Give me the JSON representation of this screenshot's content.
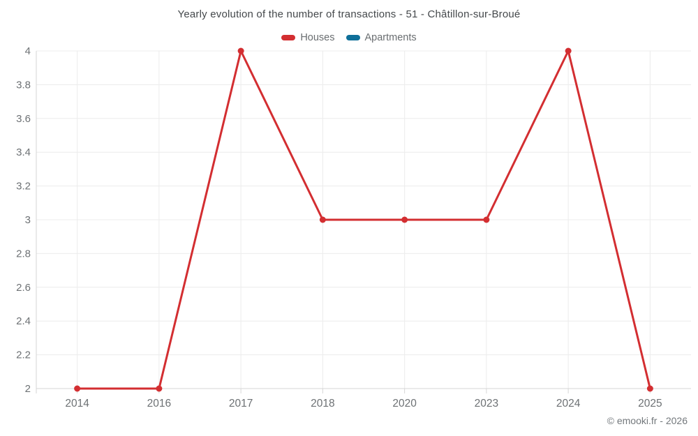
{
  "title": "Yearly evolution of the number of transactions - 51 - Châtillon-sur-Broué",
  "legend": [
    {
      "label": "Houses",
      "color": "#d32e31"
    },
    {
      "label": "Apartments",
      "color": "#0f6f99"
    }
  ],
  "watermark": "© emooki.fr - 2026",
  "colors": {
    "houses_line": "#d32e31",
    "apartments_line": "#0f6f99",
    "gridline": "#ececec",
    "axis_line": "#d6d6d6",
    "tick_label": "#6d7174",
    "title_text": "#44484b"
  },
  "chart_data": {
    "type": "line",
    "title": "Yearly evolution of the number of transactions - 51 - Châtillon-sur-Broué",
    "categories": [
      "2014",
      "2016",
      "2017",
      "2018",
      "2020",
      "2023",
      "2024",
      "2025"
    ],
    "series": [
      {
        "name": "Houses",
        "color": "#d32e31",
        "values": [
          2,
          2,
          4,
          3,
          3,
          3,
          4,
          2
        ]
      },
      {
        "name": "Apartments",
        "color": "#0f6f99",
        "values": []
      }
    ],
    "xlabel": "",
    "ylabel": "",
    "ylim": [
      2,
      4
    ],
    "ytick_labels": [
      "2",
      "2.2",
      "2.4",
      "2.6",
      "2.8",
      "3",
      "3.2",
      "3.4",
      "3.6",
      "3.8",
      "4"
    ],
    "grid": true,
    "legend_position": "top",
    "markers": true
  }
}
